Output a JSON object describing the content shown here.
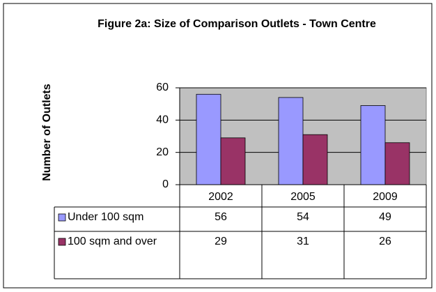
{
  "chart_data": {
    "type": "bar",
    "title": "Figure 2a: Size of Comparison Outlets - Town Centre",
    "y_label": "Number of Outlets",
    "categories": [
      "2002",
      "2005",
      "2009"
    ],
    "series": [
      {
        "name": "Under 100 sqm",
        "color": "#9999ff",
        "values": [
          56,
          54,
          49
        ]
      },
      {
        "name": "100 sqm and over",
        "color": "#993366",
        "values": [
          29,
          31,
          26
        ]
      }
    ],
    "ylim": [
      0,
      60
    ],
    "yticks": [
      0,
      20,
      40,
      60
    ],
    "grid": true,
    "plot_background": "#c0c0c0"
  }
}
